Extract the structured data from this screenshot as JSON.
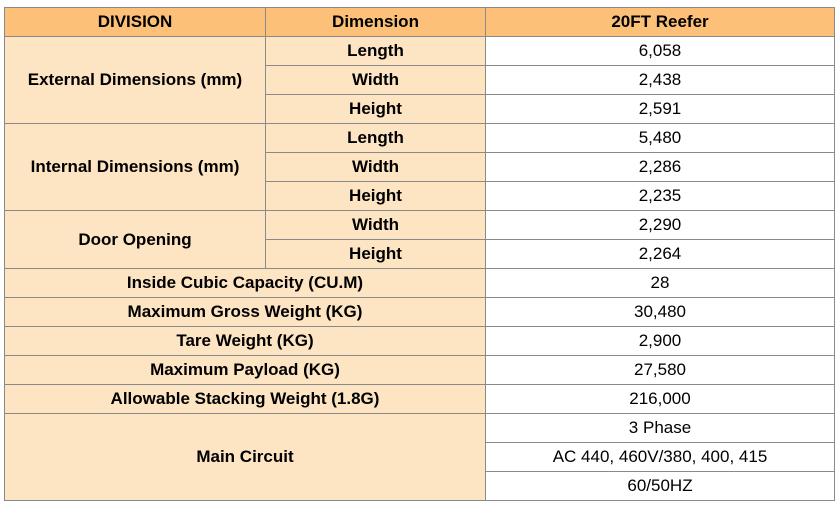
{
  "table": {
    "header": [
      "DIVISION",
      "Dimension",
      "20FT Reefer"
    ],
    "sections": [
      {
        "division": "External Dimensions (mm)",
        "rows": [
          [
            "Length",
            "6,058"
          ],
          [
            "Width",
            "2,438"
          ],
          [
            "Height",
            "2,591"
          ]
        ]
      },
      {
        "division": "Internal Dimensions (mm)",
        "rows": [
          [
            "Length",
            "5,480"
          ],
          [
            "Width",
            "2,286"
          ],
          [
            "Height",
            "2,235"
          ]
        ]
      },
      {
        "division": "Door Opening",
        "rows": [
          [
            "Width",
            "2,290"
          ],
          [
            "Height",
            "2,264"
          ]
        ]
      },
      {
        "division": "Inside Cubic Capacity (CU.M)",
        "value": "28"
      },
      {
        "division": "Maximum Gross Weight (KG)",
        "value": "30,480"
      },
      {
        "division": "Tare Weight (KG)",
        "value": "2,900"
      },
      {
        "division": "Maximum Payload (KG)",
        "value": "27,580"
      },
      {
        "division": "Allowable Stacking Weight (1.8G)",
        "value": "216,000"
      },
      {
        "division": "Main Circuit",
        "values": [
          "3 Phase",
          "AC 440, 460V/380, 400, 415",
          "60/50HZ"
        ]
      }
    ]
  }
}
